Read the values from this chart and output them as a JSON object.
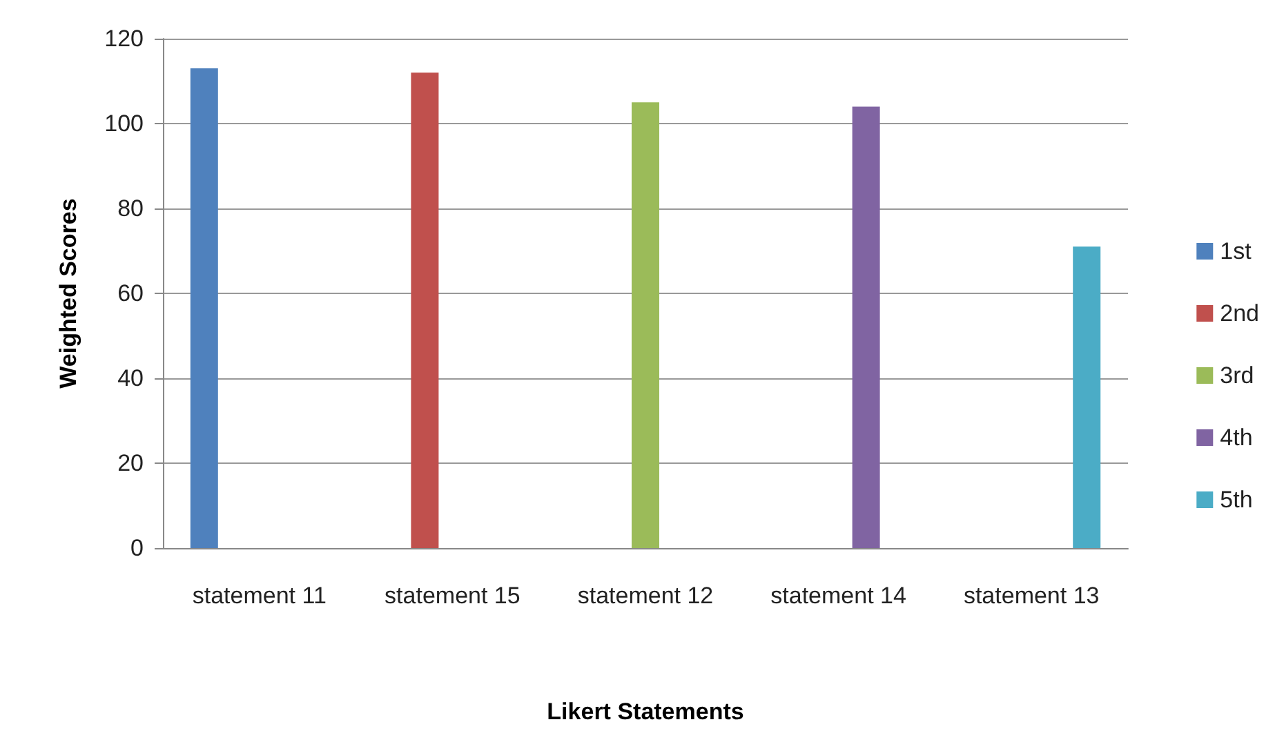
{
  "chart_data": {
    "type": "bar",
    "xlabel": "Likert Statements",
    "ylabel": "Weighted Scores",
    "categories": [
      "statement 11",
      "statement 15",
      "statement 12",
      "statement 14",
      "statement 13"
    ],
    "series": [
      {
        "name": "1st",
        "color": "#4f81bd",
        "values": [
          113,
          null,
          null,
          null,
          null
        ]
      },
      {
        "name": "2nd",
        "color": "#c0504d",
        "values": [
          null,
          112,
          null,
          null,
          null
        ]
      },
      {
        "name": "3rd",
        "color": "#9bbb59",
        "values": [
          null,
          null,
          105,
          null,
          null
        ]
      },
      {
        "name": "4th",
        "color": "#8064a2",
        "values": [
          null,
          null,
          null,
          104,
          null
        ]
      },
      {
        "name": "5th",
        "color": "#4bacc6",
        "values": [
          null,
          null,
          null,
          null,
          71
        ]
      }
    ],
    "ylim": [
      0,
      120
    ],
    "yticks": [
      0,
      20,
      40,
      60,
      80,
      100,
      120
    ],
    "grid": "y",
    "legend": "right"
  }
}
